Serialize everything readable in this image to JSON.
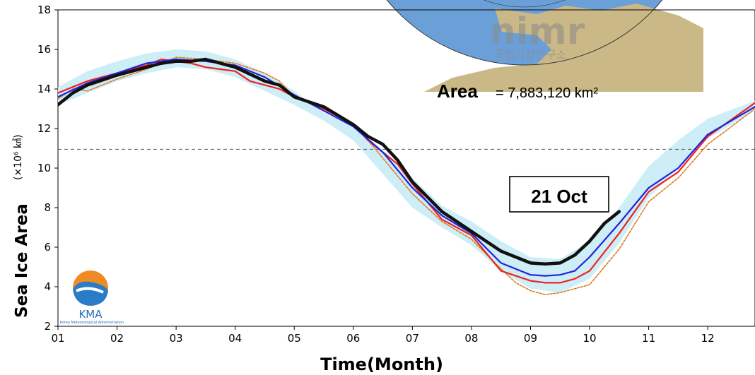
{
  "chart_data": {
    "type": "line",
    "xlabel": "Time(Month)",
    "ylabel": "Sea Ice Area",
    "ylabel_unit": "(×10⁶ ㎢)",
    "x_ticks": [
      "01",
      "02",
      "03",
      "04",
      "05",
      "06",
      "07",
      "08",
      "09",
      "10",
      "11",
      "12"
    ],
    "xlim": [
      1,
      12.8
    ],
    "ylim": [
      2,
      18
    ],
    "y_ticks": [
      2,
      4,
      6,
      8,
      10,
      12,
      14,
      16,
      18
    ],
    "reference_line_y": 10.95,
    "annotation_date": "21 Oct",
    "area_label": "Area",
    "area_value": "= 7,883,120 km²",
    "watermark_text": "nimr",
    "watermark_subtext": "국립기상연구소",
    "logo_text": "KMA",
    "logo_subtext": "Korea Meteorological Administration",
    "colors": {
      "current_year": "#111111",
      "climatology_mean": "#2222dd",
      "previous_year": "#ee2222",
      "record_min": "#e07a20",
      "range_band": "#cdeef6",
      "reference_line": "#555555",
      "map_ocean": "#6b9fd8",
      "map_land": "#cbb887"
    },
    "series": [
      {
        "role": "range_upper",
        "x": [
          1,
          1.5,
          2,
          2.5,
          3,
          3.5,
          4,
          4.5,
          5,
          5.5,
          6,
          6.5,
          7,
          7.5,
          8,
          8.5,
          9,
          9.5,
          10,
          10.5,
          11,
          11.5,
          12,
          12.8
        ],
        "y": [
          14.1,
          14.9,
          15.4,
          15.8,
          16.0,
          15.9,
          15.5,
          14.8,
          13.9,
          12.8,
          12.1,
          10.9,
          9.5,
          8.1,
          7.3,
          6.3,
          5.5,
          5.4,
          6.3,
          8.0,
          10.1,
          11.4,
          12.5,
          13.4
        ]
      },
      {
        "role": "range_lower",
        "x": [
          1,
          1.5,
          2,
          2.5,
          3,
          3.5,
          4,
          4.5,
          5,
          5.5,
          6,
          6.5,
          7,
          7.5,
          8,
          8.5,
          9,
          9.5,
          10,
          10.5,
          11,
          11.5,
          12,
          12.8
        ],
        "y": [
          13.2,
          13.8,
          14.4,
          14.8,
          15.1,
          15.0,
          14.6,
          13.9,
          13.2,
          12.4,
          11.4,
          9.7,
          8.0,
          7.0,
          6.1,
          4.8,
          3.9,
          3.7,
          4.4,
          6.2,
          8.5,
          10.0,
          11.5,
          12.9
        ]
      },
      {
        "role": "record_min",
        "x": [
          1,
          1.25,
          1.5,
          2,
          2.5,
          2.75,
          3,
          3.5,
          3.75,
          4,
          4.5,
          4.75,
          5,
          5.5,
          6,
          6.25,
          6.5,
          6.75,
          7,
          7.5,
          8,
          8.5,
          8.75,
          9,
          9.25,
          9.5,
          10,
          10.5,
          11,
          11.5,
          12,
          12.8
        ],
        "y": [
          13.5,
          14.0,
          13.9,
          14.5,
          15.0,
          15.3,
          15.6,
          15.5,
          15.4,
          15.3,
          14.8,
          14.4,
          13.6,
          13.0,
          12.2,
          11.4,
          10.5,
          9.6,
          8.7,
          7.3,
          6.4,
          4.9,
          4.2,
          3.8,
          3.6,
          3.7,
          4.1,
          5.9,
          8.3,
          9.5,
          11.2,
          13.0
        ]
      },
      {
        "role": "previous_year",
        "x": [
          1,
          1.25,
          1.5,
          2,
          2.5,
          2.75,
          3,
          3.25,
          3.5,
          3.75,
          4,
          4.25,
          4.5,
          4.75,
          5,
          5.5,
          6,
          6.25,
          6.5,
          6.75,
          7,
          7.5,
          8,
          8.5,
          9,
          9.25,
          9.5,
          9.75,
          10,
          10.5,
          11,
          11.5,
          12,
          12.8
        ],
        "y": [
          13.8,
          14.1,
          14.4,
          14.8,
          15.2,
          15.5,
          15.4,
          15.3,
          15.1,
          15.0,
          14.9,
          14.4,
          14.2,
          14.0,
          13.6,
          13.0,
          12.2,
          11.4,
          10.8,
          10.2,
          9.2,
          7.4,
          6.6,
          4.8,
          4.3,
          4.2,
          4.2,
          4.4,
          4.8,
          6.7,
          8.8,
          9.8,
          11.6,
          13.3
        ]
      },
      {
        "role": "climatology_mean",
        "x": [
          1,
          1.5,
          2,
          2.5,
          3,
          3.5,
          4,
          4.5,
          5,
          5.5,
          6,
          6.5,
          7,
          7.5,
          8,
          8.5,
          9,
          9.25,
          9.5,
          9.75,
          10,
          10.5,
          11,
          11.5,
          12,
          12.8
        ],
        "y": [
          13.6,
          14.3,
          14.8,
          15.3,
          15.5,
          15.4,
          15.2,
          14.6,
          13.7,
          12.9,
          12.1,
          10.8,
          9.0,
          7.6,
          6.7,
          5.2,
          4.6,
          4.55,
          4.6,
          4.8,
          5.5,
          7.2,
          9.0,
          10.0,
          11.7,
          13.1
        ]
      },
      {
        "role": "current_year",
        "x": [
          1,
          1.25,
          1.5,
          2,
          2.5,
          2.75,
          3,
          3.25,
          3.5,
          4,
          4.5,
          4.75,
          5,
          5.5,
          6,
          6.25,
          6.5,
          6.75,
          7,
          7.5,
          8,
          8.5,
          9,
          9.25,
          9.5,
          9.75,
          10,
          10.25,
          10.5
        ],
        "y": [
          13.2,
          13.8,
          14.2,
          14.7,
          15.1,
          15.3,
          15.4,
          15.4,
          15.5,
          15.1,
          14.4,
          14.2,
          13.6,
          13.1,
          12.2,
          11.6,
          11.2,
          10.4,
          9.3,
          7.8,
          6.8,
          5.8,
          5.2,
          5.15,
          5.2,
          5.6,
          6.3,
          7.2,
          7.8
        ]
      }
    ]
  }
}
